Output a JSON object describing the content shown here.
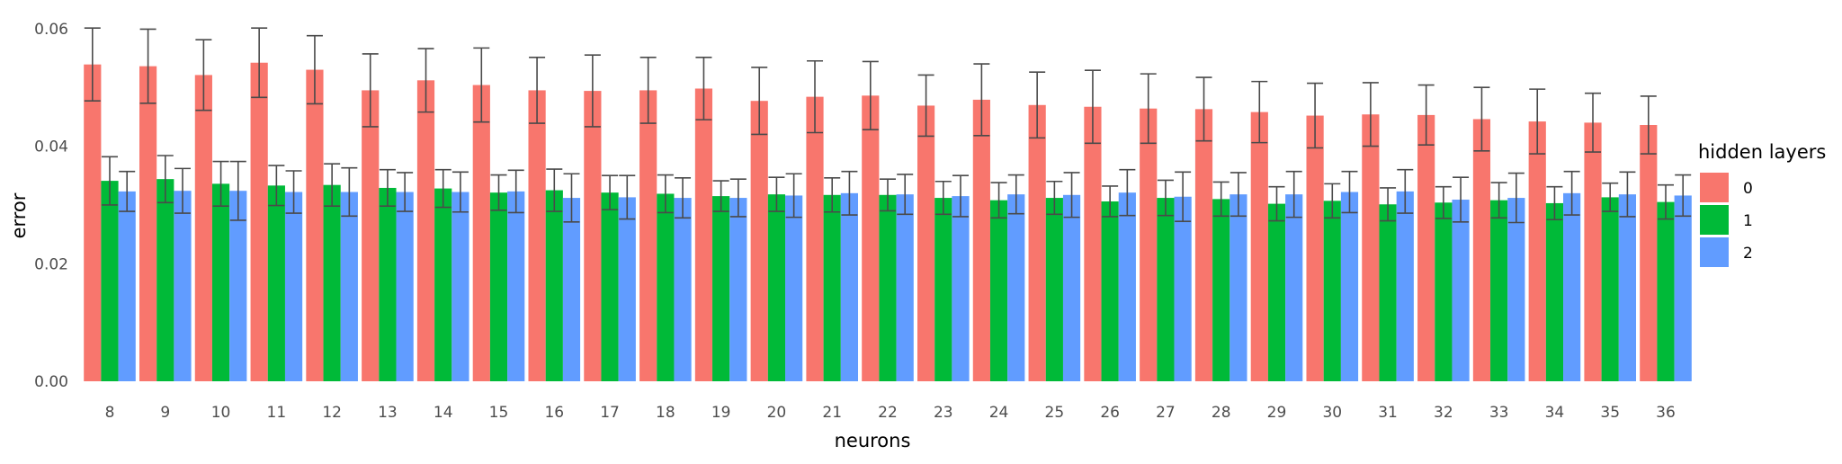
{
  "chart_data": {
    "type": "bar",
    "xlabel": "neurons",
    "ylabel": "error",
    "ylim": [
      0,
      0.0615
    ],
    "yticks": [
      "0.00",
      "0.02",
      "0.04",
      "0.06"
    ],
    "ytick_values": [
      0,
      0.02,
      0.04,
      0.06
    ],
    "grid": false,
    "legend_position": "right",
    "legend_title": "hidden layers",
    "categories": [
      "8",
      "9",
      "10",
      "11",
      "12",
      "13",
      "14",
      "15",
      "16",
      "17",
      "18",
      "19",
      "20",
      "21",
      "22",
      "23",
      "24",
      "25",
      "26",
      "27",
      "28",
      "29",
      "30",
      "31",
      "32",
      "33",
      "34",
      "35",
      "36"
    ],
    "series": [
      {
        "name": "0",
        "color": "#F8766D",
        "values": [
          0.0539,
          0.0536,
          0.0521,
          0.0542,
          0.053,
          0.0495,
          0.0512,
          0.0504,
          0.0495,
          0.0494,
          0.0495,
          0.0498,
          0.0477,
          0.0484,
          0.0486,
          0.0469,
          0.0479,
          0.047,
          0.0467,
          0.0464,
          0.0463,
          0.0458,
          0.0452,
          0.0454,
          0.0453,
          0.0446,
          0.0442,
          0.044,
          0.0436
        ],
        "error": [
          0.0062,
          0.0063,
          0.006,
          0.0059,
          0.0058,
          0.0062,
          0.0054,
          0.0063,
          0.0056,
          0.0061,
          0.0056,
          0.0053,
          0.0057,
          0.0061,
          0.0058,
          0.0052,
          0.0061,
          0.0056,
          0.0062,
          0.0059,
          0.0054,
          0.0052,
          0.0055,
          0.0054,
          0.0051,
          0.0054,
          0.0055,
          0.005,
          0.0049
        ]
      },
      {
        "name": "1",
        "color": "#00BA38",
        "values": [
          0.0341,
          0.0344,
          0.0336,
          0.0333,
          0.0334,
          0.0329,
          0.0328,
          0.0321,
          0.0325,
          0.0321,
          0.0319,
          0.0315,
          0.0318,
          0.0317,
          0.0317,
          0.0312,
          0.0308,
          0.0312,
          0.0306,
          0.0312,
          0.031,
          0.0302,
          0.0307,
          0.0301,
          0.0304,
          0.0308,
          0.0303,
          0.0313,
          0.0305
        ],
        "error": [
          0.0041,
          0.004,
          0.0038,
          0.0034,
          0.0036,
          0.0031,
          0.0032,
          0.003,
          0.0036,
          0.0029,
          0.0032,
          0.0026,
          0.0029,
          0.0029,
          0.0027,
          0.0028,
          0.003,
          0.0028,
          0.0026,
          0.003,
          0.0029,
          0.0029,
          0.0029,
          0.0028,
          0.0027,
          0.003,
          0.0028,
          0.0024,
          0.0029
        ]
      },
      {
        "name": "2",
        "color": "#619CFF",
        "values": [
          0.0323,
          0.0324,
          0.0324,
          0.0322,
          0.0322,
          0.0322,
          0.0322,
          0.0323,
          0.0312,
          0.0313,
          0.0312,
          0.0312,
          0.0316,
          0.032,
          0.0318,
          0.0315,
          0.0318,
          0.0317,
          0.0321,
          0.0314,
          0.0318,
          0.0318,
          0.0322,
          0.0323,
          0.0309,
          0.0312,
          0.032,
          0.0318,
          0.0316
        ],
        "error": [
          0.0034,
          0.0038,
          0.005,
          0.0036,
          0.0041,
          0.0033,
          0.0034,
          0.0036,
          0.0041,
          0.0037,
          0.0034,
          0.0032,
          0.0037,
          0.0037,
          0.0034,
          0.0035,
          0.0033,
          0.0038,
          0.0039,
          0.0042,
          0.0037,
          0.0039,
          0.0035,
          0.0037,
          0.0038,
          0.0042,
          0.0037,
          0.0038,
          0.0035
        ]
      }
    ]
  }
}
